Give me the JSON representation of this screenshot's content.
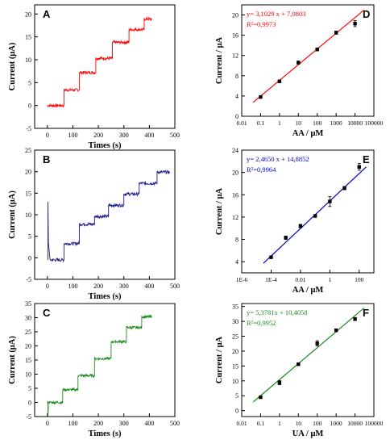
{
  "chart_data": [
    {
      "panel": "A",
      "type": "line",
      "color": "#ff0000",
      "xlabel": "Times (s)",
      "ylabel": "Current (μA)",
      "xlim": [
        -50,
        500
      ],
      "ylim": [
        -5,
        22
      ],
      "xticks": [
        "0",
        "100",
        "200",
        "300",
        "400",
        "500"
      ],
      "yticks": [
        "-5",
        "0",
        "5",
        "10",
        "15",
        "20"
      ],
      "steps": [
        {
          "t": 0,
          "y": 0
        },
        {
          "t": 65,
          "y": 3.4
        },
        {
          "t": 125,
          "y": 7.2
        },
        {
          "t": 190,
          "y": 10.3
        },
        {
          "t": 255,
          "y": 13.8
        },
        {
          "t": 320,
          "y": 16.6
        },
        {
          "t": 380,
          "y": 18.9
        }
      ],
      "t_end": 410
    },
    {
      "panel": "B",
      "type": "line",
      "color": "#1a1a8c",
      "xlabel": "Times (s)",
      "ylabel": "Current (μA)",
      "xlim": [
        -50,
        500
      ],
      "ylim": [
        -5,
        25
      ],
      "xticks": [
        "0",
        "100",
        "200",
        "300",
        "400",
        "500"
      ],
      "yticks": [
        "-5",
        "0",
        "5",
        "10",
        "15",
        "20",
        "25"
      ],
      "spike": {
        "t": 2,
        "y": 13
      },
      "steps": [
        {
          "t": 10,
          "y": -0.5
        },
        {
          "t": 65,
          "y": 3.3
        },
        {
          "t": 125,
          "y": 7.8
        },
        {
          "t": 185,
          "y": 9.6
        },
        {
          "t": 240,
          "y": 12.2
        },
        {
          "t": 300,
          "y": 14.8
        },
        {
          "t": 360,
          "y": 17.3
        },
        {
          "t": 430,
          "y": 19.9
        }
      ],
      "t_end": 480
    },
    {
      "panel": "C",
      "type": "line",
      "color": "#1f8b1f",
      "xlabel": "Times (s)",
      "ylabel": "Current (μA)",
      "xlim": [
        -50,
        500
      ],
      "ylim": [
        -5,
        35
      ],
      "xticks": [
        "0",
        "100",
        "200",
        "300",
        "400",
        "500"
      ],
      "yticks": [
        "-5",
        "0",
        "5",
        "10",
        "15",
        "20",
        "25",
        "30",
        "35"
      ],
      "spike": {
        "t": 2,
        "y": -5
      },
      "steps": [
        {
          "t": 0,
          "y": 0
        },
        {
          "t": 60,
          "y": 4.5
        },
        {
          "t": 120,
          "y": 9.5
        },
        {
          "t": 185,
          "y": 15.5
        },
        {
          "t": 250,
          "y": 21.5
        },
        {
          "t": 310,
          "y": 26.5
        },
        {
          "t": 370,
          "y": 30.3
        }
      ],
      "t_end": 410
    },
    {
      "panel": "D",
      "type": "scatter",
      "color": "#ff0000",
      "xlabel": "AA / μM",
      "ylabel": "Current / μA",
      "xscale": "log",
      "xlim": [
        0.01,
        100000
      ],
      "ylim": [
        0,
        22
      ],
      "xticks": [
        "0.01",
        "0.1",
        "1",
        "10",
        "100",
        "1000",
        "10000",
        "100000"
      ],
      "yticks": [
        "0",
        "4",
        "8",
        "12",
        "16",
        "20"
      ],
      "equation": "y= 3,1029 x + 7,0803",
      "r2": "R²=0,9973",
      "points": [
        {
          "x": 0.1,
          "y": 3.8,
          "err": 0.2
        },
        {
          "x": 1,
          "y": 6.9,
          "err": 0.2
        },
        {
          "x": 10,
          "y": 10.6,
          "err": 0.3
        },
        {
          "x": 100,
          "y": 13.2,
          "err": 0.3
        },
        {
          "x": 1000,
          "y": 16.5,
          "err": 0.3
        },
        {
          "x": 10000,
          "y": 18.3,
          "err": 0.6
        }
      ],
      "fit": {
        "slope": 3.1029,
        "intercept": 7.0803,
        "x_from": 0.04,
        "x_to": 30000
      }
    },
    {
      "panel": "E",
      "type": "scatter",
      "color": "#0000cc",
      "xlabel": "AA / μM",
      "ylabel": "Current / μA",
      "xscale": "log",
      "xlim": [
        1e-06,
        1000
      ],
      "ylim": [
        2,
        24
      ],
      "xticks": [
        "1E-6",
        "1E-4",
        "0.01",
        "1",
        "100"
      ],
      "yticks": [
        "4",
        "8",
        "12",
        "16",
        "20",
        "24"
      ],
      "equation": "y= 2,4650 x + 14,8852",
      "r2": "R²=0,9964",
      "points": [
        {
          "x": 0.0001,
          "y": 4.8,
          "err": 0.2
        },
        {
          "x": 0.001,
          "y": 8.3,
          "err": 0.3
        },
        {
          "x": 0.01,
          "y": 10.4,
          "err": 0.3
        },
        {
          "x": 0.1,
          "y": 12.2,
          "err": 0.2
        },
        {
          "x": 1,
          "y": 14.8,
          "err": 0.9
        },
        {
          "x": 10,
          "y": 17.2,
          "err": 0.3
        },
        {
          "x": 100,
          "y": 21,
          "err": 0.6
        }
      ],
      "fit": {
        "slope": 2.465,
        "intercept": 14.8852,
        "x_from": 3e-05,
        "x_to": 300
      }
    },
    {
      "panel": "F",
      "type": "scatter",
      "color": "#1f8b1f",
      "xlabel": "UA / μM",
      "ylabel": "Current / μA",
      "xscale": "log",
      "xlim": [
        0.01,
        100000
      ],
      "ylim": [
        -2,
        36
      ],
      "xticks": [
        "0.01",
        "0.1",
        "1",
        "10",
        "100",
        "1000",
        "10000",
        "100000"
      ],
      "yticks": [
        "0",
        "5",
        "10",
        "15",
        "20",
        "25",
        "30",
        "35"
      ],
      "equation": "y= 5,3781x + 10,4058",
      "r2": "R²=0,9952",
      "points": [
        {
          "x": 0.1,
          "y": 4.5,
          "err": 0.4
        },
        {
          "x": 1,
          "y": 9.4,
          "err": 0.7
        },
        {
          "x": 10,
          "y": 15.6,
          "err": 0.4
        },
        {
          "x": 100,
          "y": 22.6,
          "err": 0.9
        },
        {
          "x": 1000,
          "y": 27,
          "err": 0.4
        },
        {
          "x": 10000,
          "y": 30.8,
          "err": 0.5
        }
      ],
      "fit": {
        "slope": 5.3781,
        "intercept": 10.4058,
        "x_from": 0.04,
        "x_to": 30000
      }
    }
  ]
}
